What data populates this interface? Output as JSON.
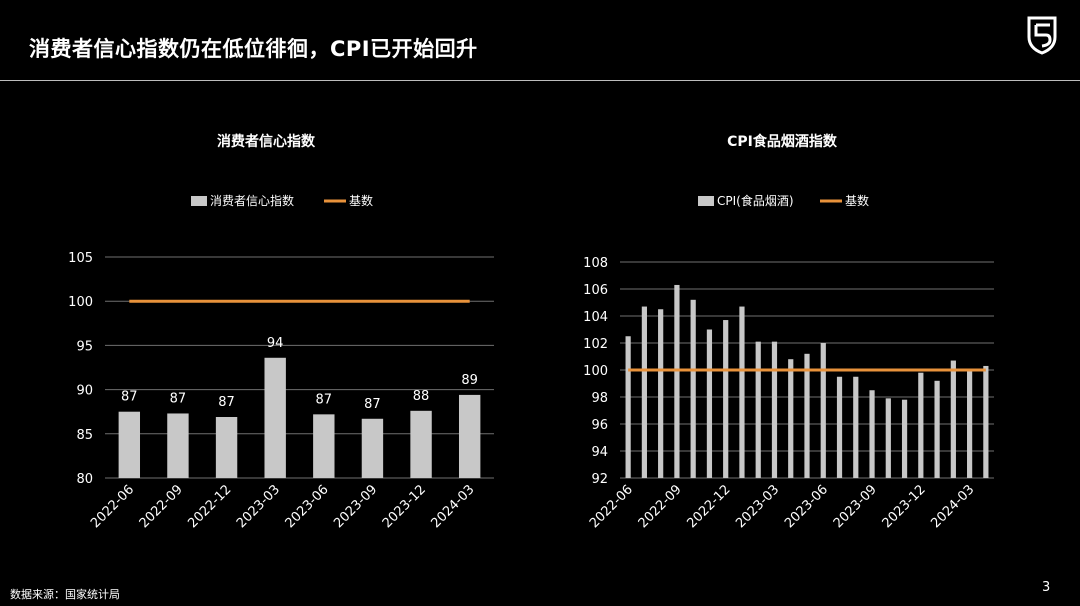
{
  "slide": {
    "title": "消费者信心指数仍在低位徘徊，CPI已开始回升",
    "source": "数据来源：国家统计局",
    "page_number": "3"
  },
  "colors": {
    "bar": "#c8c8c8",
    "baseline": "#e8923b",
    "grid": "#6f6f6f",
    "text": "#ffffff"
  },
  "chart_data": [
    {
      "type": "bar",
      "title": "消费者信心指数",
      "categories": [
        "2022-06",
        "2022-09",
        "2022-12",
        "2023-03",
        "2023-06",
        "2023-09",
        "2023-12",
        "2024-03"
      ],
      "series": [
        {
          "name": "消费者信心指数",
          "values": [
            87.5,
            87.3,
            86.9,
            93.6,
            87.2,
            86.7,
            87.6,
            89.4
          ]
        },
        {
          "name": "基数",
          "type": "line",
          "values": [
            100,
            100,
            100,
            100,
            100,
            100,
            100,
            100
          ]
        }
      ],
      "data_labels": [
        "87",
        "87",
        "87",
        "94",
        "87",
        "87",
        "88",
        "89"
      ],
      "ylim": [
        80,
        105
      ],
      "yticks": [
        "80",
        "85",
        "90",
        "95",
        "100",
        "105"
      ],
      "grid": true,
      "legend": "top-center"
    },
    {
      "type": "bar",
      "title": "CPI食品烟酒指数",
      "categories": [
        "2022-06",
        "2022-07",
        "2022-08",
        "2022-09",
        "2022-10",
        "2022-11",
        "2022-12",
        "2023-01",
        "2023-02",
        "2023-03",
        "2023-04",
        "2023-05",
        "2023-06",
        "2023-07",
        "2023-08",
        "2023-09",
        "2023-10",
        "2023-11",
        "2023-12",
        "2024-01",
        "2024-02",
        "2024-03",
        "2024-04"
      ],
      "x_tick_labels": [
        "2022-06",
        "2022-09",
        "2022-12",
        "2023-03",
        "2023-06",
        "2023-09",
        "2023-12",
        "2024-03"
      ],
      "x_tick_every": 3,
      "series": [
        {
          "name": "CPI(食品烟酒)",
          "values": [
            102.5,
            104.7,
            104.5,
            106.3,
            105.2,
            103.0,
            103.7,
            104.7,
            102.1,
            102.1,
            100.8,
            101.2,
            102.0,
            99.5,
            99.5,
            98.5,
            97.9,
            97.8,
            99.8,
            99.2,
            100.7,
            100.0,
            100.3
          ]
        },
        {
          "name": "基数",
          "type": "line",
          "values": [
            100,
            100,
            100,
            100,
            100,
            100,
            100,
            100,
            100,
            100,
            100,
            100,
            100,
            100,
            100,
            100,
            100,
            100,
            100,
            100,
            100,
            100,
            100
          ]
        }
      ],
      "ylim": [
        92,
        108
      ],
      "yticks": [
        "92",
        "94",
        "96",
        "98",
        "100",
        "102",
        "104",
        "106",
        "108"
      ],
      "grid": true,
      "legend": "top-center"
    }
  ]
}
